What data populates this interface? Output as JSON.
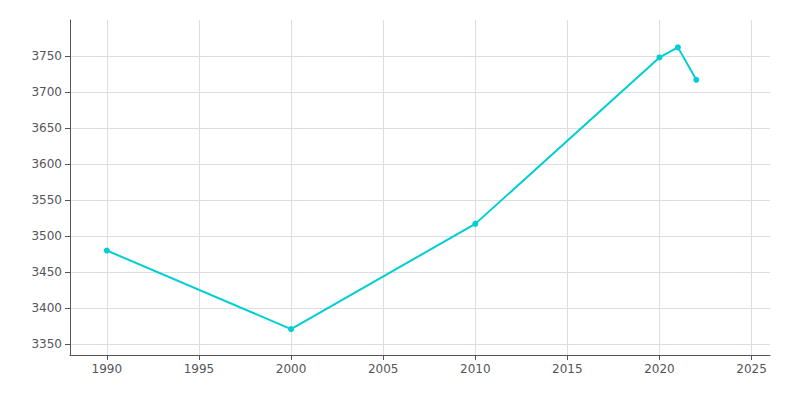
{
  "chart_data": {
    "type": "line",
    "x": [
      1990,
      2000,
      2010,
      2020,
      2021,
      2022
    ],
    "values": [
      3480,
      3371,
      3517,
      3748,
      3762,
      3717
    ],
    "color": "#00CED1",
    "marker": "circle",
    "xlim": [
      1988,
      2026
    ],
    "ylim": [
      3335,
      3800
    ],
    "xticks": [
      1990,
      1995,
      2000,
      2005,
      2010,
      2015,
      2020,
      2025
    ],
    "yticks": [
      3350,
      3400,
      3450,
      3500,
      3550,
      3600,
      3650,
      3700,
      3750
    ],
    "grid": true
  }
}
